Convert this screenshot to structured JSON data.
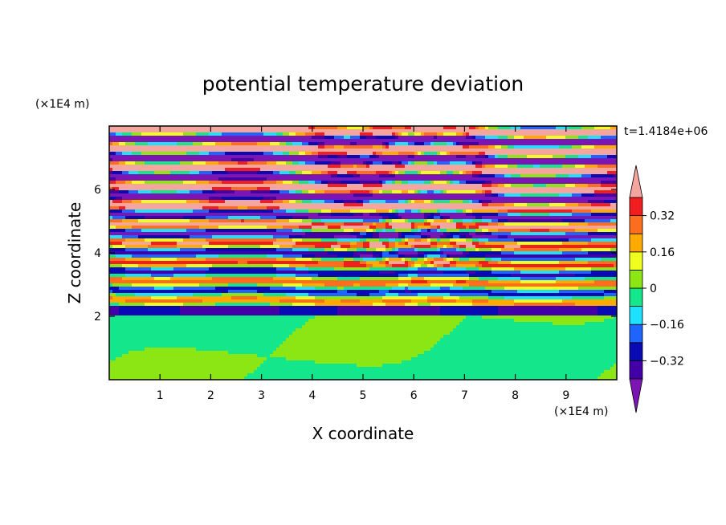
{
  "chart_data": {
    "type": "heatmap",
    "title": "potential temperature deviation",
    "xlabel": "X coordinate",
    "ylabel": "Z coordinate",
    "x_unit": "(×1E4 m)",
    "y_unit": "(×1E4 m)",
    "time_label": "t=1.4184e+06",
    "xlim": [
      0,
      10
    ],
    "ylim": [
      0,
      8
    ],
    "x_ticks": [
      1,
      2,
      3,
      4,
      5,
      6,
      7,
      8,
      9
    ],
    "y_ticks": [
      2,
      4,
      6
    ],
    "colorbar": {
      "levels": [
        -0.4,
        -0.32,
        -0.24,
        -0.16,
        -0.08,
        0,
        0.08,
        0.16,
        0.24,
        0.32,
        0.4
      ],
      "labels": [
        "0.32",
        "0.16",
        "0",
        "−0.16",
        "−0.32"
      ],
      "label_values": [
        0.32,
        0.16,
        0,
        -0.16,
        -0.32
      ],
      "colors_low_to_high": [
        "#7b16b4",
        "#4300a6",
        "#0a0ab5",
        "#1e64ff",
        "#1ee0ff",
        "#14e68c",
        "#8ce614",
        "#f0ff1e",
        "#ffaa00",
        "#ff6e1e",
        "#f01e1e",
        "#f5a5a0"
      ],
      "extend": "both"
    }
  }
}
